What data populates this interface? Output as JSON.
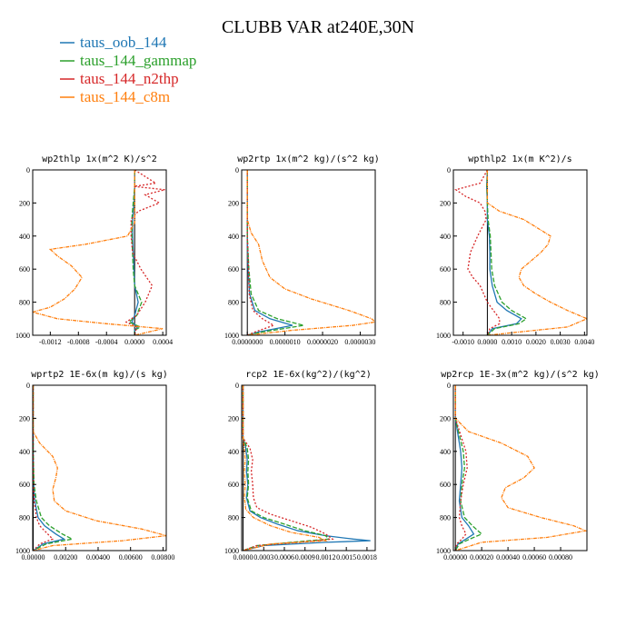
{
  "title": "CLUBB VAR at240E,30N",
  "legend": [
    {
      "label": "taus_oob_144",
      "color": "#1f77b4"
    },
    {
      "label": "taus_144_gammap",
      "color": "#2ca02c"
    },
    {
      "label": "taus_144_n2thp",
      "color": "#d62728"
    },
    {
      "label": "taus_144_c8m",
      "color": "#ff7f0e"
    }
  ],
  "chart_data": [
    {
      "type": "line",
      "title": "wp2thlp  1x(m^2 K)/s^2",
      "xlim": [
        -0.00145,
        0.00045
      ],
      "ylim": [
        1000,
        0
      ],
      "xticks": [
        -0.0012,
        -0.0008,
        -0.0004,
        0,
        0.0004
      ],
      "xticklabels": [
        "-0.0012",
        "-0.0008",
        "-0.0004",
        "0.0000",
        "0.0004"
      ],
      "yticks": [
        0,
        200,
        400,
        600,
        800,
        1000
      ],
      "series": [
        {
          "y": [
            0,
            100,
            200,
            300,
            400,
            500,
            600,
            700,
            800,
            880,
            920,
            950,
            970,
            1000
          ],
          "x": [
            0,
            0,
            -1e-05,
            -3e-05,
            -3e-05,
            -2e-05,
            -1e-05,
            0,
            5e-05,
            0,
            -4e-05,
            4e-05,
            0,
            0
          ]
        },
        {
          "y": [
            0,
            100,
            200,
            300,
            400,
            500,
            600,
            700,
            800,
            880,
            920,
            950,
            970,
            1000
          ],
          "x": [
            0,
            0,
            -2e-05,
            -4e-05,
            -4e-05,
            -3e-05,
            -2e-05,
            0,
            0.0001,
            3e-05,
            -8e-05,
            8e-05,
            0,
            0
          ]
        },
        {
          "y": [
            0,
            80,
            100,
            120,
            150,
            200,
            250,
            300,
            400,
            500,
            600,
            700,
            800,
            880,
            920,
            950,
            1000
          ],
          "x": [
            0,
            0.0003,
            -1e-05,
            0.00043,
            0.00015,
            0.00035,
            5e-05,
            -5e-05,
            -5e-05,
            -3e-05,
            9e-05,
            0.00025,
            0.00015,
            3e-05,
            -0.00012,
            3e-05,
            0
          ]
        },
        {
          "y": [
            0,
            320,
            400,
            450,
            480,
            520,
            580,
            650,
            720,
            780,
            830,
            860,
            900,
            930,
            960,
            1000
          ],
          "x": [
            0,
            0,
            -0.0001,
            -0.0007,
            -0.0012,
            -0.0011,
            -0.0009,
            -0.00075,
            -0.00085,
            -0.001,
            -0.0012,
            -0.00145,
            -0.0011,
            -0.0004,
            0.0004,
            0
          ]
        }
      ]
    },
    {
      "type": "line",
      "title": "wp2rtp  1x(m^2 kg)/(s^2 kg)",
      "xlim": [
        -1.5e-07,
        3.4e-06
      ],
      "ylim": [
        1000,
        0
      ],
      "xticks": [
        0,
        1e-06,
        2e-06,
        3e-06
      ],
      "xticklabels": [
        "0.0000000",
        "0.0000010",
        "0.0000020",
        "0.0000030"
      ],
      "yticks": [
        0,
        200,
        400,
        600,
        800,
        1000
      ],
      "series": [
        {
          "y": [
            0,
            200,
            400,
            600,
            750,
            850,
            900,
            940,
            980,
            1000
          ],
          "x": [
            0,
            0,
            0,
            2e-08,
            6e-08,
            2e-07,
            6e-07,
            1.2e-06,
            3e-07,
            0
          ]
        },
        {
          "y": [
            0,
            200,
            400,
            600,
            750,
            850,
            900,
            940,
            980,
            1000
          ],
          "x": [
            0,
            0,
            0,
            4e-08,
            1e-07,
            3e-07,
            8e-07,
            1.5e-06,
            4e-07,
            0
          ]
        },
        {
          "y": [
            0,
            200,
            400,
            600,
            750,
            850,
            900,
            940,
            980,
            1000
          ],
          "x": [
            0,
            0,
            0,
            3e-08,
            5e-08,
            1.5e-07,
            4e-07,
            7e-07,
            2e-07,
            0
          ]
        },
        {
          "y": [
            0,
            300,
            380,
            450,
            550,
            650,
            720,
            780,
            850,
            900,
            920,
            940,
            970,
            1000
          ],
          "x": [
            0,
            0,
            1e-07,
            3e-07,
            4e-07,
            6e-07,
            1e-06,
            1.7e-06,
            2.7e-06,
            3.3e-06,
            3.4e-06,
            2.8e-06,
            1.2e-06,
            0
          ]
        }
      ]
    },
    {
      "type": "line",
      "title": "wpthlp2  1x(m K^2)/s",
      "xlim": [
        -0.0014,
        0.0041
      ],
      "ylim": [
        1000,
        0
      ],
      "xticks": [
        -0.001,
        0,
        0.001,
        0.002,
        0.003,
        0.004
      ],
      "xticklabels": [
        "-0.0010",
        "0.0000",
        "0.0010",
        "0.0020",
        "0.0030",
        "0.0040"
      ],
      "yticks": [
        0,
        200,
        400,
        600,
        800,
        1000
      ],
      "series": [
        {
          "y": [
            0,
            100,
            200,
            300,
            400,
            500,
            600,
            700,
            800,
            850,
            900,
            930,
            960,
            1000
          ],
          "x": [
            0,
            -3e-05,
            0,
            0,
            8e-05,
            0.0001,
            0.0001,
            0.0002,
            0.0004,
            0.0008,
            0.0014,
            0.0012,
            0.0002,
            0
          ]
        },
        {
          "y": [
            0,
            100,
            200,
            300,
            400,
            500,
            600,
            700,
            800,
            850,
            900,
            930,
            960,
            1000
          ],
          "x": [
            0,
            -2e-05,
            0,
            3e-05,
            0.00012,
            0.00015,
            0.00018,
            0.0003,
            0.0006,
            0.001,
            0.0016,
            0.0013,
            0.0003,
            0
          ]
        },
        {
          "y": [
            0,
            80,
            120,
            160,
            200,
            250,
            300,
            400,
            500,
            600,
            650,
            700,
            800,
            900,
            930,
            960,
            1000
          ],
          "x": [
            0,
            -0.0003,
            -0.0013,
            -0.0009,
            -0.0003,
            -0.0001,
            -5e-05,
            -0.0004,
            -0.0007,
            -0.0008,
            -0.0006,
            -0.0003,
            0,
            0.0005,
            0.0005,
            0.0001,
            0
          ]
        },
        {
          "y": [
            0,
            200,
            250,
            300,
            400,
            450,
            500,
            550,
            600,
            650,
            700,
            750,
            800,
            850,
            900,
            950,
            1000
          ],
          "x": [
            0,
            0,
            0.0005,
            0.0015,
            0.0026,
            0.0025,
            0.0022,
            0.0018,
            0.0014,
            0.0013,
            0.0015,
            0.002,
            0.0026,
            0.0033,
            0.0041,
            0.0033,
            0
          ]
        }
      ]
    },
    {
      "type": "line",
      "title": "wprtp2  1E-6x(m kg)/(s kg)",
      "xlim": [
        -3e-05,
        0.0082
      ],
      "ylim": [
        1000,
        0
      ],
      "xticks": [
        0,
        0.002,
        0.004,
        0.006,
        0.008
      ],
      "xticklabels": [
        "0.00000",
        "0.00200",
        "0.00400",
        "0.00600",
        "0.00800"
      ],
      "yticks": [
        0,
        200,
        400,
        600,
        800,
        1000
      ],
      "series": [
        {
          "y": [
            0,
            400,
            600,
            700,
            800,
            850,
            900,
            930,
            960,
            1000
          ],
          "x": [
            0,
            0,
            3e-05,
            0.0001,
            0.0003,
            0.0007,
            0.0014,
            0.0019,
            0.0006,
            0
          ]
        },
        {
          "y": [
            0,
            400,
            600,
            700,
            800,
            850,
            900,
            930,
            960,
            1000
          ],
          "x": [
            0,
            0,
            5e-05,
            0.0002,
            0.0005,
            0.001,
            0.0018,
            0.0024,
            0.0008,
            0
          ]
        },
        {
          "y": [
            0,
            400,
            600,
            700,
            800,
            850,
            900,
            930,
            960,
            1000
          ],
          "x": [
            0,
            0,
            2e-05,
            6e-05,
            0.0002,
            0.0004,
            0.0009,
            0.0012,
            0.0004,
            0
          ]
        },
        {
          "y": [
            0,
            280,
            350,
            430,
            500,
            560,
            630,
            700,
            760,
            820,
            870,
            910,
            940,
            970,
            1000
          ],
          "x": [
            0,
            0,
            0.0004,
            0.0012,
            0.0015,
            0.0014,
            0.0012,
            0.0013,
            0.002,
            0.0039,
            0.0067,
            0.0082,
            0.0055,
            0.0012,
            0
          ]
        }
      ]
    },
    {
      "type": "line",
      "title": "rcp2  1E-6x(kg^2)/(kg^2)",
      "xlim": [
        -2e-05,
        0.00192
      ],
      "ylim": [
        1000,
        0
      ],
      "xticks": [
        0,
        0.0003,
        0.0006,
        0.0009,
        0.0012,
        0.0015,
        0.0018
      ],
      "xticklabels": [
        "0.0000",
        "0.0003",
        "0.0006",
        "0.0009",
        "0.0012",
        "0.0015",
        "0.0018"
      ],
      "yticks": [
        0,
        200,
        400,
        600,
        800,
        1000
      ],
      "series": [
        {
          "y": [
            0,
            320,
            380,
            450,
            520,
            600,
            680,
            760,
            800,
            840,
            880,
            910,
            930,
            940,
            950,
            970,
            1000
          ],
          "x": [
            0,
            0,
            4e-05,
            6e-05,
            5e-05,
            7e-05,
            5e-05,
            0.0001,
            0.00025,
            0.0005,
            0.0008,
            0.0012,
            0.0016,
            0.00185,
            0.0012,
            0.0003,
            0
          ]
        },
        {
          "y": [
            0,
            320,
            380,
            450,
            520,
            600,
            680,
            760,
            800,
            840,
            880,
            910,
            930,
            950,
            970,
            1000
          ],
          "x": [
            0,
            0,
            6e-05,
            8e-05,
            7e-05,
            8e-05,
            6e-05,
            0.00012,
            0.0003,
            0.0006,
            0.0009,
            0.0012,
            0.00125,
            0.0007,
            0.0002,
            0
          ]
        },
        {
          "y": [
            0,
            320,
            380,
            450,
            520,
            600,
            680,
            740,
            780,
            820,
            860,
            900,
            930,
            950,
            970,
            1000
          ],
          "x": [
            0,
            0,
            0.0001,
            0.00014,
            0.00012,
            0.00014,
            0.00015,
            0.0002,
            0.0004,
            0.0007,
            0.001,
            0.0012,
            0.0013,
            0.0008,
            0.0002,
            0
          ]
        },
        {
          "y": [
            0,
            320,
            380,
            450,
            520,
            600,
            680,
            750,
            800,
            850,
            890,
            920,
            940,
            960,
            1000
          ],
          "x": [
            0,
            0,
            2e-05,
            3e-05,
            2e-05,
            3e-05,
            2e-05,
            4e-05,
            0.00015,
            0.0004,
            0.0007,
            0.0011,
            0.0012,
            0.0004,
            0
          ]
        }
      ]
    },
    {
      "type": "line",
      "title": "wp2rcp  1E-3x(m^2 kg)/(s^2 kg)",
      "xlim": [
        -1.5e-05,
        0.001
      ],
      "ylim": [
        1000,
        0
      ],
      "xticks": [
        0,
        0.0002,
        0.0004,
        0.0006,
        0.0008
      ],
      "xticklabels": [
        "0.00000",
        "0.00020",
        "0.00040",
        "0.00060",
        "0.00080"
      ],
      "yticks": [
        0,
        200,
        400,
        600,
        800,
        1000
      ],
      "series": [
        {
          "y": [
            0,
            200,
            300,
            400,
            500,
            600,
            700,
            800,
            850,
            900,
            930,
            960,
            1000
          ],
          "x": [
            0,
            0,
            2e-05,
            4e-05,
            5e-05,
            4e-05,
            3e-05,
            5e-05,
            0.0001,
            0.00014,
            8e-05,
            2e-05,
            0
          ]
        },
        {
          "y": [
            0,
            200,
            300,
            400,
            500,
            600,
            700,
            800,
            850,
            900,
            930,
            960,
            1000
          ],
          "x": [
            0,
            0,
            3e-05,
            6e-05,
            7e-05,
            5e-05,
            4e-05,
            7e-05,
            0.00013,
            0.0002,
            0.00011,
            3e-05,
            0
          ]
        },
        {
          "y": [
            0,
            200,
            300,
            400,
            500,
            600,
            700,
            800,
            850,
            900,
            930,
            960,
            1000
          ],
          "x": [
            0,
            0,
            4e-05,
            8e-05,
            9e-05,
            6e-05,
            4e-05,
            3e-05,
            5e-05,
            8e-05,
            5e-05,
            1e-05,
            0
          ]
        },
        {
          "y": [
            0,
            200,
            280,
            350,
            430,
            500,
            560,
            620,
            680,
            740,
            800,
            850,
            880,
            920,
            950,
            1000
          ],
          "x": [
            0,
            0,
            0.0001,
            0.00035,
            0.00055,
            0.0006,
            0.00052,
            0.00038,
            0.00035,
            0.0004,
            0.00065,
            0.0009,
            0.00099,
            0.0007,
            0.0002,
            0
          ]
        }
      ]
    }
  ]
}
